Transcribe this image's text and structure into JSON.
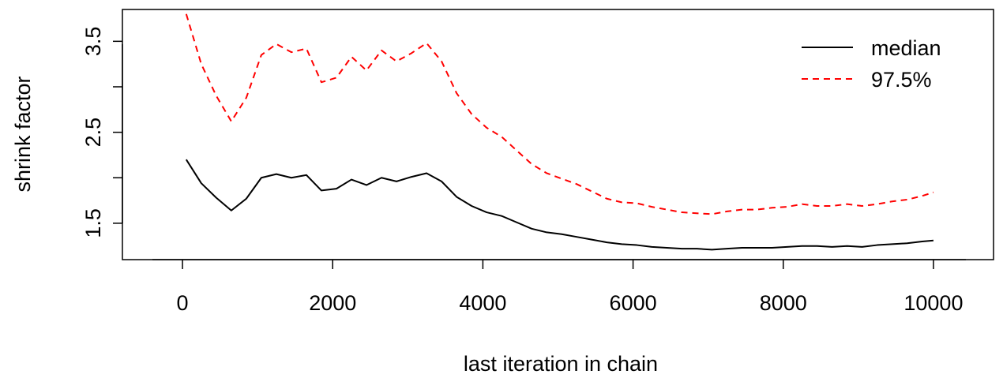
{
  "chart_data": {
    "type": "line",
    "title": "",
    "xlabel": "last iteration in chain",
    "ylabel": "shrink factor",
    "xlim": [
      -800,
      10800
    ],
    "ylim": [
      1.1,
      3.85
    ],
    "xticks": [
      0,
      2000,
      4000,
      6000,
      8000,
      10000
    ],
    "xtick_labels": [
      "0",
      "2000",
      "4000",
      "6000",
      "8000",
      "10000"
    ],
    "yticks": [
      1.5,
      2.0,
      2.5,
      3.0,
      3.5
    ],
    "ytick_labels": [
      "1.5",
      "",
      "2.5",
      "",
      "3.5"
    ],
    "grid": false,
    "legend_position": "top-right",
    "x": [
      50,
      250,
      450,
      650,
      850,
      1050,
      1250,
      1450,
      1650,
      1850,
      2050,
      2250,
      2450,
      2650,
      2850,
      3050,
      3250,
      3450,
      3650,
      3850,
      4050,
      4250,
      4450,
      4650,
      4850,
      5050,
      5250,
      5450,
      5650,
      5850,
      6050,
      6250,
      6450,
      6650,
      6850,
      7050,
      7250,
      7450,
      7650,
      7850,
      8050,
      8250,
      8450,
      8650,
      8850,
      9050,
      9250,
      9450,
      9650,
      9850,
      10000
    ],
    "series": [
      {
        "name": "median",
        "color": "#000000",
        "dash": "solid",
        "values": [
          2.2,
          1.94,
          1.78,
          1.64,
          1.77,
          2.0,
          2.04,
          2.0,
          2.03,
          1.86,
          1.88,
          1.98,
          1.92,
          2.0,
          1.96,
          2.01,
          2.05,
          1.96,
          1.79,
          1.69,
          1.62,
          1.58,
          1.51,
          1.44,
          1.4,
          1.38,
          1.35,
          1.32,
          1.29,
          1.27,
          1.26,
          1.24,
          1.23,
          1.22,
          1.22,
          1.21,
          1.22,
          1.23,
          1.23,
          1.23,
          1.24,
          1.25,
          1.25,
          1.24,
          1.25,
          1.24,
          1.26,
          1.27,
          1.28,
          1.3,
          1.31
        ]
      },
      {
        "name": "97.5%",
        "color": "#ff0000",
        "dash": "dashed",
        "values": [
          3.8,
          3.25,
          2.9,
          2.62,
          2.88,
          3.35,
          3.47,
          3.38,
          3.42,
          3.05,
          3.1,
          3.33,
          3.18,
          3.4,
          3.28,
          3.37,
          3.48,
          3.28,
          2.93,
          2.7,
          2.55,
          2.45,
          2.3,
          2.15,
          2.05,
          1.99,
          1.93,
          1.85,
          1.77,
          1.73,
          1.72,
          1.68,
          1.65,
          1.62,
          1.61,
          1.6,
          1.63,
          1.65,
          1.65,
          1.67,
          1.68,
          1.71,
          1.69,
          1.69,
          1.71,
          1.69,
          1.71,
          1.74,
          1.76,
          1.8,
          1.84
        ]
      }
    ]
  }
}
